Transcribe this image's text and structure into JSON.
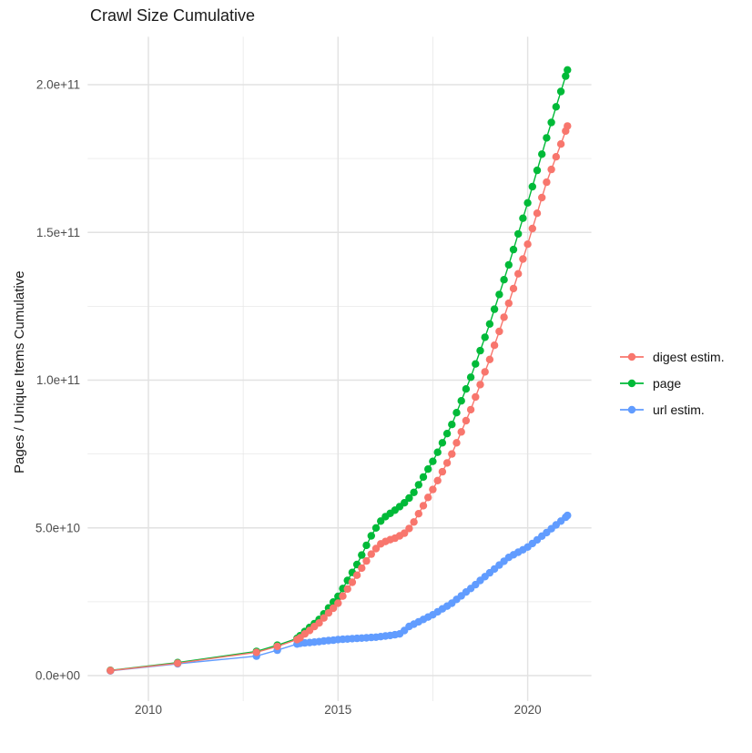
{
  "title": "Crawl Size Cumulative",
  "axes": {
    "y_label": "Pages / Unique Items Cumulative",
    "x_label": "",
    "x_ticks": [
      {
        "label": "2010",
        "value": 2010
      },
      {
        "label": "2015",
        "value": 2015
      },
      {
        "label": "2020",
        "value": 2020
      }
    ],
    "x_minor": [
      2012.5,
      2017.5
    ],
    "y_ticks": [
      {
        "label": "0.0e+00",
        "value": 0
      },
      {
        "label": "5.0e+10",
        "value": 50
      },
      {
        "label": "1.0e+11",
        "value": 100
      },
      {
        "label": "1.5e+11",
        "value": 150
      },
      {
        "label": "2.0e+11",
        "value": 200
      }
    ],
    "y_minor": [
      25,
      75,
      125,
      175
    ]
  },
  "legend": {
    "position": "right",
    "items": [
      {
        "label": "digest estim.",
        "color": "#F8766D"
      },
      {
        "label": "page",
        "color": "#00BA38"
      },
      {
        "label": "url estim.",
        "color": "#619CFF"
      }
    ]
  },
  "chart_data": {
    "type": "scatter",
    "title": "Crawl Size Cumulative",
    "xlabel": "",
    "ylabel": "Pages / Unique Items Cumulative",
    "grid": true,
    "legend_position": "right",
    "x_range_years": [
      2008.4,
      2021.7
    ],
    "y_range": [
      0,
      215000000000.0
    ],
    "value_unit": 1000000000.0,
    "series": [
      {
        "name": "digest estim.",
        "color": "#F8766D",
        "points": [
          [
            2009.0,
            1.7
          ],
          [
            2010.77,
            4.2
          ],
          [
            2012.85,
            7.9
          ],
          [
            2013.4,
            9.9
          ],
          [
            2013.92,
            12.2
          ],
          [
            2014.0,
            12.8
          ],
          [
            2014.125,
            14.1
          ],
          [
            2014.25,
            15.3
          ],
          [
            2014.375,
            16.6
          ],
          [
            2014.5,
            17.8
          ],
          [
            2014.625,
            19.5
          ],
          [
            2014.75,
            21.2
          ],
          [
            2014.875,
            22.8
          ],
          [
            2015.0,
            24.5
          ],
          [
            2015.125,
            26.9
          ],
          [
            2015.25,
            29.3
          ],
          [
            2015.375,
            31.6
          ],
          [
            2015.5,
            34
          ],
          [
            2015.625,
            36.4
          ],
          [
            2015.75,
            38.8
          ],
          [
            2015.875,
            41.1
          ],
          [
            2016.0,
            43
          ],
          [
            2016.125,
            44.6
          ],
          [
            2016.25,
            45.4
          ],
          [
            2016.375,
            46
          ],
          [
            2016.5,
            46.5
          ],
          [
            2016.625,
            47.3
          ],
          [
            2016.75,
            48.2
          ],
          [
            2016.875,
            49.8
          ],
          [
            2017.0,
            52
          ],
          [
            2017.125,
            54.8
          ],
          [
            2017.25,
            57.5
          ],
          [
            2017.375,
            60.3
          ],
          [
            2017.5,
            63
          ],
          [
            2017.625,
            66
          ],
          [
            2017.75,
            69
          ],
          [
            2017.875,
            72
          ],
          [
            2018.0,
            75
          ],
          [
            2018.125,
            78.8
          ],
          [
            2018.25,
            82.5
          ],
          [
            2018.375,
            86.3
          ],
          [
            2018.5,
            90
          ],
          [
            2018.625,
            94.3
          ],
          [
            2018.75,
            98.5
          ],
          [
            2018.875,
            102.8
          ],
          [
            2019.0,
            107
          ],
          [
            2019.125,
            111.8
          ],
          [
            2019.25,
            116.5
          ],
          [
            2019.375,
            121.3
          ],
          [
            2019.5,
            126
          ],
          [
            2019.625,
            131
          ],
          [
            2019.75,
            136
          ],
          [
            2019.875,
            141
          ],
          [
            2020.0,
            146
          ],
          [
            2020.125,
            151.3
          ],
          [
            2020.25,
            156.5
          ],
          [
            2020.375,
            161.8
          ],
          [
            2020.5,
            167
          ],
          [
            2020.625,
            171.3
          ],
          [
            2020.75,
            175.6
          ],
          [
            2020.875,
            179.9
          ],
          [
            2021.0,
            184.3
          ],
          [
            2021.05,
            186
          ]
        ]
      },
      {
        "name": "page",
        "color": "#00BA38",
        "points": [
          [
            2009.0,
            1.8
          ],
          [
            2010.77,
            4.4
          ],
          [
            2012.85,
            8.2
          ],
          [
            2013.4,
            10.3
          ],
          [
            2013.92,
            12.6
          ],
          [
            2014.0,
            13.5
          ],
          [
            2014.125,
            14.9
          ],
          [
            2014.25,
            16.3
          ],
          [
            2014.375,
            17.6
          ],
          [
            2014.5,
            19
          ],
          [
            2014.625,
            20.9
          ],
          [
            2014.75,
            22.9
          ],
          [
            2014.875,
            24.9
          ],
          [
            2015.0,
            26.8
          ],
          [
            2015.125,
            29.5
          ],
          [
            2015.25,
            32.2
          ],
          [
            2015.375,
            34.9
          ],
          [
            2015.5,
            37.6
          ],
          [
            2015.625,
            40.8
          ],
          [
            2015.75,
            44.1
          ],
          [
            2015.875,
            47.3
          ],
          [
            2016.0,
            50
          ],
          [
            2016.125,
            52.3
          ],
          [
            2016.25,
            53.8
          ],
          [
            2016.375,
            54.9
          ],
          [
            2016.5,
            56
          ],
          [
            2016.625,
            57.2
          ],
          [
            2016.75,
            58.5
          ],
          [
            2016.875,
            60.1
          ],
          [
            2017.0,
            62
          ],
          [
            2017.125,
            64.6
          ],
          [
            2017.25,
            67.2
          ],
          [
            2017.375,
            69.9
          ],
          [
            2017.5,
            72.5
          ],
          [
            2017.625,
            75.6
          ],
          [
            2017.75,
            78.8
          ],
          [
            2017.875,
            81.9
          ],
          [
            2018.0,
            85
          ],
          [
            2018.125,
            89
          ],
          [
            2018.25,
            93
          ],
          [
            2018.375,
            97
          ],
          [
            2018.5,
            101
          ],
          [
            2018.625,
            105.5
          ],
          [
            2018.75,
            110
          ],
          [
            2018.875,
            114.5
          ],
          [
            2019.0,
            119
          ],
          [
            2019.125,
            124
          ],
          [
            2019.25,
            129
          ],
          [
            2019.375,
            134
          ],
          [
            2019.5,
            139
          ],
          [
            2019.625,
            144.2
          ],
          [
            2019.75,
            149.5
          ],
          [
            2019.875,
            154.8
          ],
          [
            2020.0,
            160
          ],
          [
            2020.125,
            165.5
          ],
          [
            2020.25,
            171
          ],
          [
            2020.375,
            176.5
          ],
          [
            2020.5,
            182
          ],
          [
            2020.625,
            187.2
          ],
          [
            2020.75,
            192.5
          ],
          [
            2020.875,
            197.7
          ],
          [
            2021.0,
            202.9
          ],
          [
            2021.05,
            205
          ]
        ]
      },
      {
        "name": "url estim.",
        "color": "#619CFF",
        "points": [
          [
            2009.0,
            1.6
          ],
          [
            2010.77,
            4.0
          ],
          [
            2012.85,
            6.6
          ],
          [
            2013.4,
            8.6
          ],
          [
            2013.92,
            10.7
          ],
          [
            2014.0,
            10.9
          ],
          [
            2014.125,
            11.05
          ],
          [
            2014.25,
            11.2
          ],
          [
            2014.375,
            11.35
          ],
          [
            2014.5,
            11.5
          ],
          [
            2014.625,
            11.7
          ],
          [
            2014.75,
            11.85
          ],
          [
            2014.875,
            12
          ],
          [
            2015.0,
            12.2
          ],
          [
            2015.125,
            12.3
          ],
          [
            2015.25,
            12.4
          ],
          [
            2015.375,
            12.5
          ],
          [
            2015.5,
            12.6
          ],
          [
            2015.625,
            12.7
          ],
          [
            2015.75,
            12.8
          ],
          [
            2015.875,
            12.9
          ],
          [
            2016.0,
            13
          ],
          [
            2016.125,
            13.2
          ],
          [
            2016.25,
            13.4
          ],
          [
            2016.375,
            13.6
          ],
          [
            2016.5,
            13.85
          ],
          [
            2016.625,
            14.1
          ],
          [
            2016.75,
            15.25
          ],
          [
            2016.875,
            16.65
          ],
          [
            2017.0,
            17.4
          ],
          [
            2017.125,
            18.2
          ],
          [
            2017.25,
            19
          ],
          [
            2017.375,
            19.8
          ],
          [
            2017.5,
            20.6
          ],
          [
            2017.625,
            21.6
          ],
          [
            2017.75,
            22.6
          ],
          [
            2017.875,
            23.5
          ],
          [
            2018.0,
            24.5
          ],
          [
            2018.125,
            25.8
          ],
          [
            2018.25,
            27
          ],
          [
            2018.375,
            28.3
          ],
          [
            2018.5,
            29.5
          ],
          [
            2018.625,
            30.8
          ],
          [
            2018.75,
            32.2
          ],
          [
            2018.875,
            33.5
          ],
          [
            2019.0,
            34.8
          ],
          [
            2019.125,
            36.1
          ],
          [
            2019.25,
            37.4
          ],
          [
            2019.375,
            38.7
          ],
          [
            2019.5,
            40
          ],
          [
            2019.625,
            40.9
          ],
          [
            2019.75,
            41.75
          ],
          [
            2019.875,
            42.6
          ],
          [
            2020.0,
            43.5
          ],
          [
            2020.125,
            44.7
          ],
          [
            2020.25,
            45.95
          ],
          [
            2020.375,
            47.2
          ],
          [
            2020.5,
            48.4
          ],
          [
            2020.625,
            49.7
          ],
          [
            2020.75,
            51
          ],
          [
            2020.875,
            52.3
          ],
          [
            2021.0,
            53.6
          ],
          [
            2021.05,
            54.2
          ]
        ]
      }
    ]
  }
}
